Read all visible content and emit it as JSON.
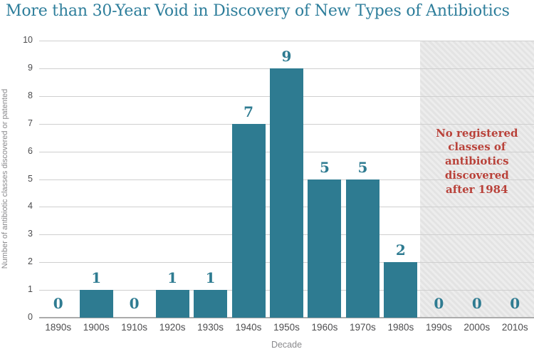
{
  "title": "More than 30-Year Void in Discovery of New Types of Antibiotics",
  "chart_data": {
    "type": "bar",
    "title": "More than 30-Year Void in Discovery of New Types of Antibiotics",
    "categories": [
      "1890s",
      "1900s",
      "1910s",
      "1920s",
      "1930s",
      "1940s",
      "1950s",
      "1960s",
      "1970s",
      "1980s",
      "1990s",
      "2000s",
      "2010s"
    ],
    "values": [
      0,
      1,
      0,
      1,
      1,
      7,
      9,
      5,
      5,
      2,
      0,
      0,
      0
    ],
    "xlabel": "Decade",
    "ylabel": "Number of antibiotic classes discovered or patented",
    "ylim": [
      0,
      10
    ],
    "yticks": [
      0,
      1,
      2,
      3,
      4,
      5,
      6,
      7,
      8,
      9,
      10
    ],
    "grid": true,
    "legend": "none",
    "shaded_region": {
      "start_category": "1990s",
      "end_category": "2010s",
      "annotation": "No registered\nclasses of\nantibiotics\ndiscovered\nafter 1984"
    },
    "colors": {
      "bar": "#2E7B91",
      "title_text": "#2E7E9B",
      "annotation_text": "#B9423A",
      "tick_text": "#4D4D4F",
      "muted_text": "#8A8A8D",
      "gridline": "#CFCFCF",
      "axis_line": "#ABABAB",
      "shade_base": "#E3E3E3",
      "shade_stripe": "#EDEDED"
    }
  }
}
